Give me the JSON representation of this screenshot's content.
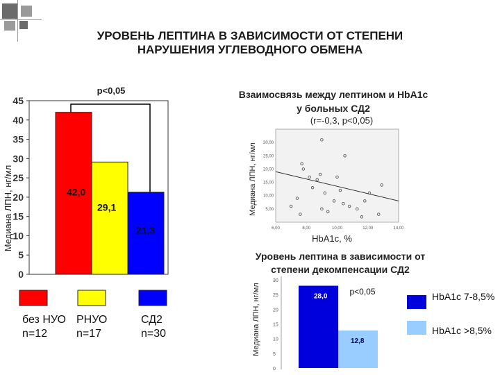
{
  "slide": {
    "title_line1": "УРОВЕНЬ ЛЕПТИНА В ЗАВИСИМОСТИ ОТ СТЕПЕНИ",
    "title_line2": "НАРУШЕНИЯ УГЛЕВОДНОГО ОБМЕНА",
    "colors": {
      "deco_square": "#6b6b6b",
      "deco_line": "#9a9a9a"
    }
  },
  "chart_data": [
    {
      "type": "bar",
      "ylabel": "Медиана ЛПН, нг/мл",
      "ylim": [
        0,
        45
      ],
      "yticks": [
        "0",
        "5",
        "10",
        "15",
        "20",
        "25",
        "30",
        "35",
        "40",
        "45"
      ],
      "values": [
        42.0,
        29.1,
        21.3
      ],
      "data_labels": [
        "42,0",
        "29,1",
        "21,3"
      ],
      "colors": [
        "#ff0000",
        "#ffff00",
        "#0000ff"
      ],
      "significance": "р<0,05",
      "legend": [
        {
          "line1": "без НУО",
          "line2": "n=12",
          "color": "#ff0000"
        },
        {
          "line1": "РНУО",
          "line2": "n=17",
          "color": "#ffff00"
        },
        {
          "line1": "СД2",
          "line2": "n=30",
          "color": "#0000ff"
        }
      ]
    },
    {
      "type": "scatter",
      "title_line1": "Взаимосвязь между лептином и HbA1c",
      "title_line2": "у больных СД2",
      "subtitle": "(r=-0,3, p<0,05)",
      "xlabel": "HbA1c, %",
      "ylabel": "Медиана ЛПН, нг/мл",
      "xlim": [
        6,
        14
      ],
      "ylim": [
        0,
        35
      ],
      "xticks": [
        "6,00",
        "8,00",
        "10,00",
        "12,00",
        "14,00"
      ],
      "yticks": [
        "5,00",
        "10,00",
        "15,00",
        "20,00",
        "25,00",
        "30,00"
      ],
      "points": [
        {
          "x": 7.0,
          "y": 6
        },
        {
          "x": 7.4,
          "y": 9
        },
        {
          "x": 7.6,
          "y": 3
        },
        {
          "x": 7.7,
          "y": 22
        },
        {
          "x": 7.8,
          "y": 20
        },
        {
          "x": 8.2,
          "y": 17
        },
        {
          "x": 8.4,
          "y": 13
        },
        {
          "x": 8.7,
          "y": 16
        },
        {
          "x": 9.0,
          "y": 31
        },
        {
          "x": 8.9,
          "y": 18
        },
        {
          "x": 9.2,
          "y": 11
        },
        {
          "x": 9.0,
          "y": 5
        },
        {
          "x": 9.4,
          "y": 4
        },
        {
          "x": 9.8,
          "y": 8
        },
        {
          "x": 10.0,
          "y": 17
        },
        {
          "x": 10.2,
          "y": 12
        },
        {
          "x": 10.4,
          "y": 7
        },
        {
          "x": 10.5,
          "y": 25
        },
        {
          "x": 10.8,
          "y": 6
        },
        {
          "x": 11.3,
          "y": 5
        },
        {
          "x": 11.6,
          "y": 2
        },
        {
          "x": 11.8,
          "y": 8
        },
        {
          "x": 12.1,
          "y": 11
        },
        {
          "x": 12.7,
          "y": 3
        },
        {
          "x": 12.9,
          "y": 14
        }
      ],
      "trend_line": [
        {
          "x": 6,
          "y": 19
        },
        {
          "x": 14,
          "y": 8
        }
      ]
    },
    {
      "type": "bar",
      "title_line1": "Уровень лептина в зависимости от",
      "title_line2": "степени декомпенсации СД2",
      "ylabel": "Медиана ЛПН, нг/мл",
      "ylim": [
        0,
        30
      ],
      "yticks": [
        "0",
        "5",
        "10",
        "15",
        "20",
        "25",
        "30"
      ],
      "values": [
        28.0,
        12.8
      ],
      "data_labels": [
        "28,0",
        "12,8"
      ],
      "colors": [
        "#0000dd",
        "#99ccff"
      ],
      "significance": "р<0,05",
      "legend": [
        {
          "label": "HbA1c 7-8,5%",
          "color": "#0000dd"
        },
        {
          "label": "HbA1c >8,5%",
          "color": "#99ccff"
        }
      ]
    }
  ]
}
